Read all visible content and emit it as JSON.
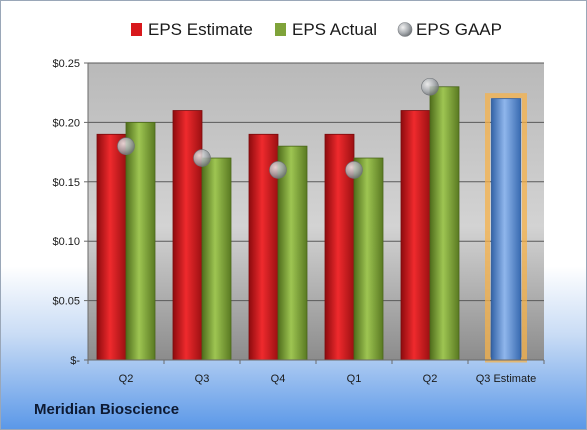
{
  "company": "Meridian Bioscience",
  "chart_data": {
    "type": "bar",
    "categories": [
      "Q2",
      "Q3",
      "Q4",
      "Q1",
      "Q2",
      "Q3 Estimate"
    ],
    "series": [
      {
        "name": "EPS Estimate",
        "color": "#d8181c",
        "values": [
          0.19,
          0.21,
          0.19,
          0.19,
          0.21,
          null
        ]
      },
      {
        "name": "EPS Actual",
        "color": "#7fa33a",
        "values": [
          0.2,
          0.17,
          0.18,
          0.17,
          0.23,
          null
        ]
      },
      {
        "name": "EPS GAAP",
        "color": "#b0b4b8",
        "values": [
          0.18,
          0.17,
          0.16,
          0.16,
          0.23,
          null
        ]
      },
      {
        "name": "Q3 Estimate",
        "color": "#5b8fd6",
        "values": [
          null,
          null,
          null,
          null,
          null,
          0.22
        ]
      }
    ],
    "ylim": [
      0,
      0.25
    ],
    "yticks": [
      0,
      0.05,
      0.1,
      0.15,
      0.2,
      0.25
    ],
    "ytick_labels": [
      "$-",
      "$0.05",
      "$0.10",
      "$0.15",
      "$0.20",
      "$0.25"
    ],
    "legend_position": "top",
    "grid": true
  }
}
